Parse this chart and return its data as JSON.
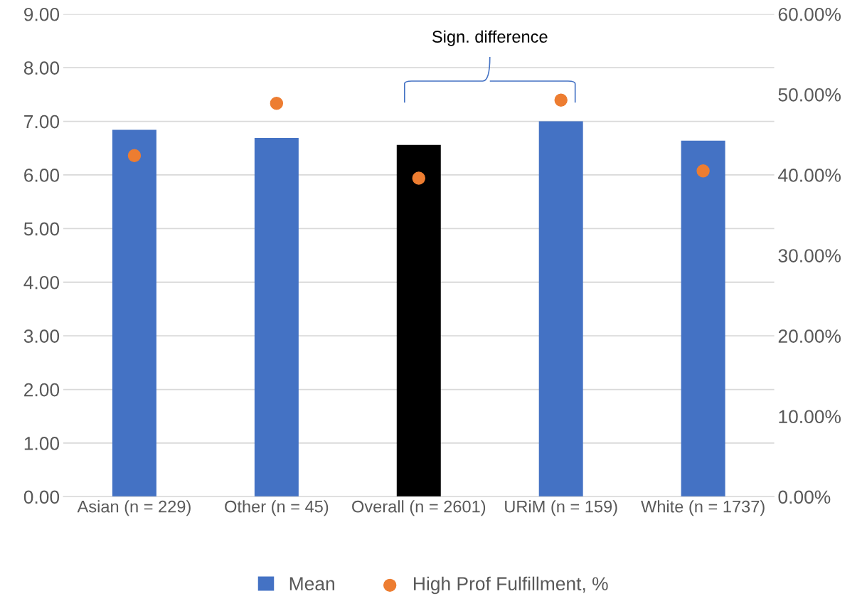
{
  "chart_data": {
    "type": "bar",
    "categories": [
      "Asian (n = 229)",
      "Other (n = 45)",
      "Overall (n = 2601)",
      "URiM (n = 159)",
      "White (n = 1737)"
    ],
    "series": [
      {
        "name": "Mean",
        "color": "#4472c4",
        "colors": [
          "#4472c4",
          "#4472c4",
          "#000000",
          "#4472c4",
          "#4472c4"
        ],
        "values": [
          6.84,
          6.69,
          6.56,
          7.0,
          6.64
        ]
      },
      {
        "name": "High Prof Fulfillment, %",
        "type": "scatter",
        "axis": "y2",
        "color": "#ed7d31",
        "marker": "circle",
        "values": [
          42.4,
          48.9,
          39.6,
          49.3,
          40.5
        ]
      }
    ],
    "ylim": [
      0,
      9
    ],
    "yticks": [
      {
        "value": 0,
        "label": "0.00"
      },
      {
        "value": 1,
        "label": "1.00"
      },
      {
        "value": 2,
        "label": "2.00"
      },
      {
        "value": 3,
        "label": "3.00"
      },
      {
        "value": 4,
        "label": "4.00"
      },
      {
        "value": 5,
        "label": "5.00"
      },
      {
        "value": 6,
        "label": "6.00"
      },
      {
        "value": 7,
        "label": "7.00"
      },
      {
        "value": 8,
        "label": "8.00"
      },
      {
        "value": 9,
        "label": "9.00"
      }
    ],
    "y2lim": [
      0,
      60
    ],
    "y2ticks": [
      {
        "value": 0,
        "label": "0.00%"
      },
      {
        "value": 10,
        "label": "10.00%"
      },
      {
        "value": 20,
        "label": "20.00%"
      },
      {
        "value": 30,
        "label": "30.00%"
      },
      {
        "value": 40,
        "label": "40.00%"
      },
      {
        "value": 50,
        "label": "50.00%"
      },
      {
        "value": 60,
        "label": "60.00%"
      }
    ],
    "grid": "y",
    "legend": "bottom",
    "annotations": [
      "Sign. difference"
    ]
  }
}
